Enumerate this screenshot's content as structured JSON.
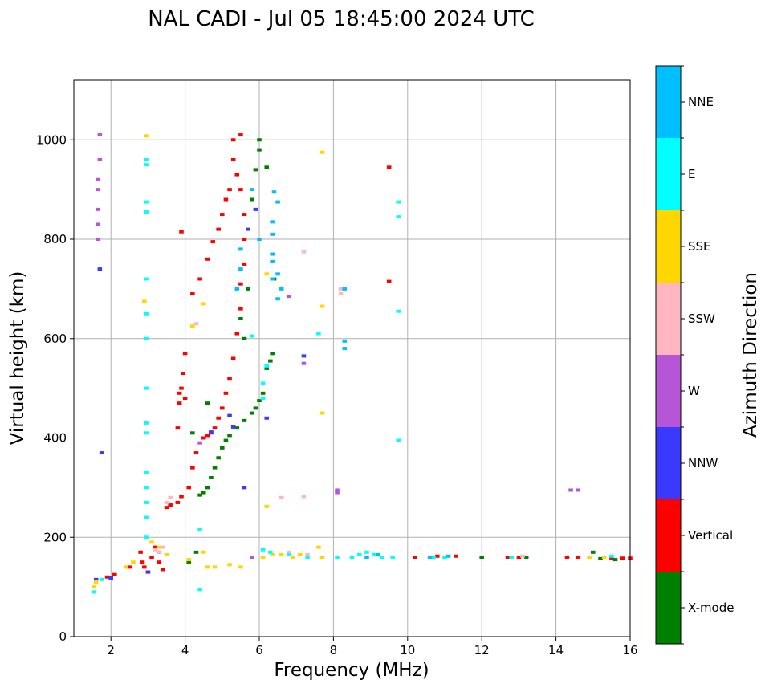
{
  "chart_data": {
    "type": "scatter",
    "title": "NAL CADI - Jul 05 18:45:00 2024 UTC",
    "xlabel": "Frequency (MHz)",
    "ylabel": "Virtual height (km)",
    "xlim": [
      1,
      16
    ],
    "ylim": [
      0,
      1120
    ],
    "xticks": [
      2,
      4,
      6,
      8,
      10,
      12,
      14,
      16
    ],
    "yticks": [
      0,
      200,
      400,
      600,
      800,
      1000
    ],
    "grid": true,
    "colorbar": {
      "label": "Azimuth Direction",
      "categories": [
        "X-mode",
        "Vertical",
        "NNW",
        "W",
        "SSW",
        "SSE",
        "E",
        "NNE"
      ],
      "colors": [
        "#008000",
        "#ff0000",
        "#3a3aff",
        "#b656d6",
        "#ffb6c1",
        "#ffd700",
        "#00ffff",
        "#00bfff"
      ]
    },
    "series": [
      {
        "name": "Vertical",
        "color": "#ff0000",
        "points": [
          [
            1.9,
            120
          ],
          [
            2.1,
            125
          ],
          [
            2.5,
            140
          ],
          [
            2.8,
            170
          ],
          [
            2.85,
            150
          ],
          [
            2.9,
            140
          ],
          [
            3.0,
            130
          ],
          [
            3.1,
            160
          ],
          [
            3.2,
            180
          ],
          [
            3.3,
            150
          ],
          [
            3.4,
            135
          ],
          [
            3.5,
            260
          ],
          [
            3.6,
            265
          ],
          [
            3.8,
            270
          ],
          [
            3.9,
            282
          ],
          [
            4.1,
            300
          ],
          [
            4.2,
            340
          ],
          [
            4.3,
            370
          ],
          [
            4.5,
            400
          ],
          [
            4.6,
            405
          ],
          [
            4.7,
            410
          ],
          [
            4.8,
            420
          ],
          [
            4.9,
            440
          ],
          [
            5.0,
            460
          ],
          [
            5.1,
            490
          ],
          [
            5.2,
            520
          ],
          [
            5.3,
            560
          ],
          [
            5.4,
            610
          ],
          [
            5.5,
            660
          ],
          [
            5.5,
            710
          ],
          [
            5.6,
            750
          ],
          [
            5.6,
            800
          ],
          [
            5.6,
            850
          ],
          [
            5.5,
            900
          ],
          [
            5.4,
            930
          ],
          [
            5.3,
            960
          ],
          [
            5.3,
            1000
          ],
          [
            5.5,
            1010
          ],
          [
            3.8,
            420
          ],
          [
            3.85,
            470
          ],
          [
            3.9,
            500
          ],
          [
            3.95,
            530
          ],
          [
            4.0,
            570
          ],
          [
            4.2,
            690
          ],
          [
            4.4,
            720
          ],
          [
            4.6,
            760
          ],
          [
            4.75,
            795
          ],
          [
            4.9,
            820
          ],
          [
            5.0,
            850
          ],
          [
            5.1,
            880
          ],
          [
            5.2,
            900
          ],
          [
            3.85,
            490
          ],
          [
            4.0,
            480
          ],
          [
            3.9,
            815
          ],
          [
            9.5,
            945
          ],
          [
            9.5,
            715
          ],
          [
            10.2,
            160
          ],
          [
            10.8,
            162
          ],
          [
            11.3,
            162
          ],
          [
            12.7,
            160
          ],
          [
            13.0,
            160
          ],
          [
            14.3,
            160
          ],
          [
            14.6,
            160
          ],
          [
            15.5,
            158
          ],
          [
            15.8,
            158
          ],
          [
            16.0,
            158
          ]
        ]
      },
      {
        "name": "X-mode",
        "color": "#008000",
        "points": [
          [
            4.1,
            150
          ],
          [
            4.3,
            170
          ],
          [
            4.4,
            285
          ],
          [
            4.5,
            290
          ],
          [
            4.6,
            300
          ],
          [
            4.7,
            320
          ],
          [
            4.8,
            340
          ],
          [
            4.9,
            360
          ],
          [
            5.0,
            380
          ],
          [
            5.1,
            395
          ],
          [
            5.2,
            405
          ],
          [
            5.4,
            420
          ],
          [
            5.6,
            435
          ],
          [
            5.8,
            450
          ],
          [
            5.9,
            460
          ],
          [
            6.0,
            475
          ],
          [
            6.1,
            490
          ],
          [
            6.2,
            540
          ],
          [
            6.3,
            555
          ],
          [
            6.35,
            570
          ],
          [
            6.4,
            720
          ],
          [
            6.2,
            945
          ],
          [
            6.0,
            980
          ],
          [
            6.0,
            1000
          ],
          [
            5.6,
            600
          ],
          [
            5.5,
            640
          ],
          [
            5.7,
            700
          ],
          [
            5.8,
            880
          ],
          [
            4.2,
            410
          ],
          [
            4.6,
            470
          ],
          [
            5.9,
            940
          ],
          [
            12.0,
            160
          ],
          [
            13.2,
            160
          ],
          [
            15.2,
            157
          ],
          [
            15.6,
            155
          ],
          [
            15.0,
            170
          ]
        ]
      },
      {
        "name": "NNW",
        "color": "#3a3aff",
        "points": [
          [
            1.6,
            115
          ],
          [
            2.0,
            118
          ],
          [
            3.0,
            130
          ],
          [
            3.3,
            170
          ],
          [
            4.7,
            412
          ],
          [
            5.3,
            422
          ],
          [
            5.2,
            445
          ],
          [
            5.7,
            820
          ],
          [
            5.9,
            860
          ],
          [
            6.2,
            440
          ],
          [
            7.2,
            565
          ],
          [
            1.75,
            370
          ],
          [
            1.7,
            740
          ],
          [
            5.6,
            300
          ]
        ]
      },
      {
        "name": "W",
        "color": "#b656d6",
        "points": [
          [
            1.65,
            800
          ],
          [
            1.65,
            830
          ],
          [
            1.65,
            860
          ],
          [
            1.65,
            900
          ],
          [
            1.65,
            920
          ],
          [
            1.7,
            960
          ],
          [
            1.7,
            1010
          ],
          [
            7.2,
            550
          ],
          [
            6.8,
            685
          ],
          [
            8.1,
            295
          ],
          [
            8.1,
            290
          ],
          [
            14.4,
            295
          ],
          [
            14.6,
            295
          ],
          [
            4.4,
            390
          ],
          [
            5.8,
            160
          ]
        ]
      },
      {
        "name": "SSW",
        "color": "#ffb6c1",
        "points": [
          [
            3.2,
            175
          ],
          [
            3.3,
            170
          ],
          [
            3.4,
            180
          ],
          [
            3.6,
            280
          ],
          [
            3.5,
            270
          ],
          [
            4.3,
            630
          ],
          [
            6.6,
            280
          ],
          [
            7.2,
            282
          ],
          [
            7.2,
            775
          ],
          [
            8.2,
            690
          ],
          [
            8.2,
            700
          ],
          [
            6.8,
            170
          ],
          [
            7.1,
            165
          ],
          [
            7.3,
            165
          ],
          [
            13.1,
            162
          ]
        ]
      },
      {
        "name": "SSE",
        "color": "#ffd700",
        "points": [
          [
            1.55,
            100
          ],
          [
            1.6,
            110
          ],
          [
            2.4,
            140
          ],
          [
            2.6,
            150
          ],
          [
            3.1,
            190
          ],
          [
            3.3,
            180
          ],
          [
            3.5,
            165
          ],
          [
            4.1,
            155
          ],
          [
            4.5,
            170
          ],
          [
            4.8,
            140
          ],
          [
            5.2,
            145
          ],
          [
            5.5,
            140
          ],
          [
            6.1,
            160
          ],
          [
            6.2,
            262
          ],
          [
            6.35,
            165
          ],
          [
            6.6,
            165
          ],
          [
            6.9,
            160
          ],
          [
            7.1,
            165
          ],
          [
            7.6,
            180
          ],
          [
            7.7,
            160
          ],
          [
            7.7,
            665
          ],
          [
            7.7,
            975
          ],
          [
            2.9,
            675
          ],
          [
            2.95,
            1008
          ],
          [
            6.2,
            730
          ],
          [
            4.2,
            625
          ],
          [
            4.5,
            670
          ],
          [
            7.7,
            450
          ],
          [
            14.9,
            160
          ],
          [
            15.3,
            160
          ],
          [
            4.6,
            140
          ]
        ]
      },
      {
        "name": "E",
        "color": "#00ffff",
        "points": [
          [
            1.55,
            90
          ],
          [
            1.75,
            115
          ],
          [
            2.95,
            960
          ],
          [
            2.95,
            950
          ],
          [
            2.95,
            875
          ],
          [
            2.95,
            855
          ],
          [
            2.95,
            720
          ],
          [
            2.95,
            650
          ],
          [
            2.95,
            600
          ],
          [
            2.95,
            500
          ],
          [
            2.95,
            430
          ],
          [
            2.95,
            410
          ],
          [
            2.95,
            330
          ],
          [
            2.95,
            300
          ],
          [
            2.95,
            270
          ],
          [
            2.95,
            240
          ],
          [
            2.95,
            200
          ],
          [
            4.4,
            215
          ],
          [
            4.4,
            95
          ],
          [
            6.1,
            175
          ],
          [
            6.3,
            170
          ],
          [
            6.8,
            165
          ],
          [
            7.3,
            160
          ],
          [
            7.6,
            610
          ],
          [
            8.1,
            160
          ],
          [
            8.5,
            160
          ],
          [
            8.7,
            165
          ],
          [
            8.9,
            170
          ],
          [
            9.1,
            165
          ],
          [
            9.3,
            160
          ],
          [
            9.6,
            160
          ],
          [
            9.75,
            875
          ],
          [
            9.75,
            845
          ],
          [
            9.75,
            655
          ],
          [
            9.75,
            395
          ],
          [
            10.7,
            160
          ],
          [
            11.0,
            160
          ],
          [
            12.8,
            160
          ],
          [
            15.5,
            162
          ],
          [
            5.8,
            605
          ],
          [
            6.2,
            545
          ],
          [
            6.1,
            510
          ],
          [
            6.1,
            480
          ]
        ]
      },
      {
        "name": "NNE",
        "color": "#00bfff",
        "points": [
          [
            6.35,
            835
          ],
          [
            6.35,
            810
          ],
          [
            6.35,
            770
          ],
          [
            6.35,
            755
          ],
          [
            6.35,
            720
          ],
          [
            6.4,
            895
          ],
          [
            6.5,
            875
          ],
          [
            6.5,
            730
          ],
          [
            6.5,
            680
          ],
          [
            6.6,
            700
          ],
          [
            5.5,
            780
          ],
          [
            5.5,
            740
          ],
          [
            5.4,
            700
          ],
          [
            5.8,
            900
          ],
          [
            6.0,
            800
          ],
          [
            8.3,
            595
          ],
          [
            8.3,
            580
          ],
          [
            8.3,
            700
          ],
          [
            8.9,
            160
          ],
          [
            9.2,
            165
          ],
          [
            10.6,
            160
          ],
          [
            11.1,
            162
          ]
        ]
      }
    ]
  }
}
